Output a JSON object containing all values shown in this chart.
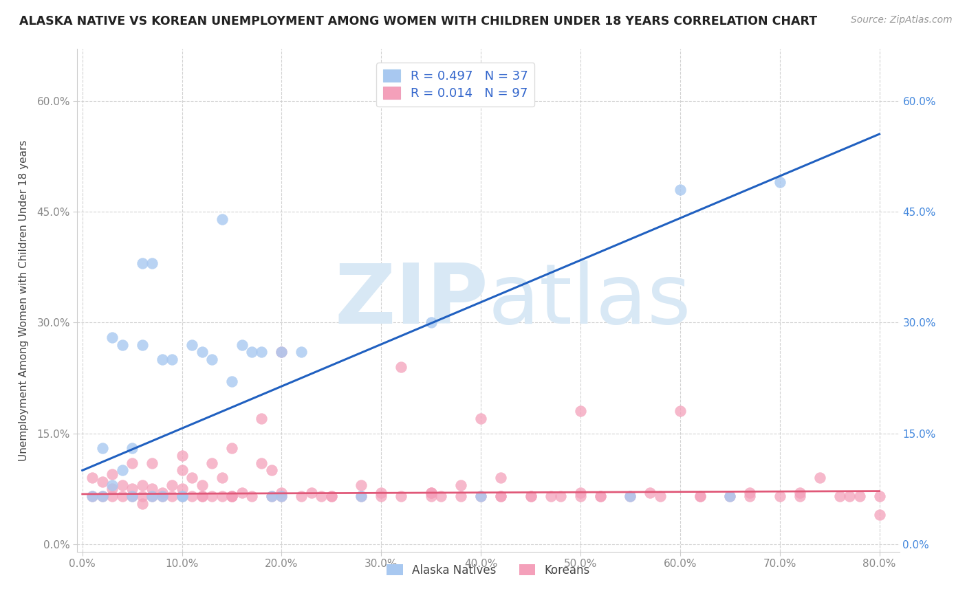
{
  "title": "ALASKA NATIVE VS KOREAN UNEMPLOYMENT AMONG WOMEN WITH CHILDREN UNDER 18 YEARS CORRELATION CHART",
  "source": "Source: ZipAtlas.com",
  "ylabel": "Unemployment Among Women with Children Under 18 years",
  "watermark_zip": "ZIP",
  "watermark_atlas": "atlas",
  "xlim": [
    -0.005,
    0.82
  ],
  "ylim": [
    -0.01,
    0.67
  ],
  "xticks": [
    0.0,
    0.1,
    0.2,
    0.3,
    0.4,
    0.5,
    0.6,
    0.7,
    0.8
  ],
  "xticklabels": [
    "0.0%",
    "10.0%",
    "20.0%",
    "30.0%",
    "40.0%",
    "50.0%",
    "60.0%",
    "70.0%",
    "80.0%"
  ],
  "yticks": [
    0.0,
    0.15,
    0.3,
    0.45,
    0.6
  ],
  "yticklabels_left": [
    "0.0%",
    "15.0%",
    "30.0%",
    "45.0%",
    "60.0%"
  ],
  "yticklabels_right": [
    "0.0%",
    "15.0%",
    "30.0%",
    "45.0%",
    "60.0%"
  ],
  "alaska_color": "#A8C8F0",
  "korean_color": "#F4A0BA",
  "alaska_line_color": "#2060C0",
  "korean_line_color": "#E05878",
  "R_alaska": 0.497,
  "N_alaska": 37,
  "R_korean": 0.014,
  "N_korean": 97,
  "legend_label_alaska": "Alaska Natives",
  "legend_label_korean": "Koreans",
  "alaska_line_x0": 0.0,
  "alaska_line_y0": 0.1,
  "alaska_line_x1": 0.8,
  "alaska_line_y1": 0.555,
  "korean_line_x0": 0.0,
  "korean_line_y0": 0.068,
  "korean_line_x1": 0.8,
  "korean_line_y1": 0.072,
  "alaska_scatter_x": [
    0.01,
    0.02,
    0.02,
    0.03,
    0.03,
    0.04,
    0.04,
    0.05,
    0.05,
    0.06,
    0.06,
    0.07,
    0.07,
    0.08,
    0.08,
    0.09,
    0.1,
    0.1,
    0.11,
    0.12,
    0.13,
    0.14,
    0.15,
    0.16,
    0.17,
    0.18,
    0.19,
    0.2,
    0.2,
    0.22,
    0.28,
    0.35,
    0.4,
    0.55,
    0.6,
    0.65,
    0.7
  ],
  "alaska_scatter_y": [
    0.065,
    0.13,
    0.065,
    0.08,
    0.28,
    0.1,
    0.27,
    0.13,
    0.065,
    0.27,
    0.38,
    0.38,
    0.065,
    0.25,
    0.065,
    0.25,
    0.065,
    0.065,
    0.27,
    0.26,
    0.25,
    0.44,
    0.22,
    0.27,
    0.26,
    0.26,
    0.065,
    0.065,
    0.26,
    0.26,
    0.065,
    0.3,
    0.065,
    0.065,
    0.48,
    0.065,
    0.49
  ],
  "korean_scatter_x": [
    0.01,
    0.01,
    0.02,
    0.02,
    0.03,
    0.03,
    0.03,
    0.04,
    0.04,
    0.05,
    0.05,
    0.05,
    0.06,
    0.06,
    0.06,
    0.07,
    0.07,
    0.07,
    0.08,
    0.08,
    0.09,
    0.09,
    0.1,
    0.1,
    0.1,
    0.11,
    0.11,
    0.12,
    0.12,
    0.13,
    0.13,
    0.14,
    0.14,
    0.15,
    0.15,
    0.15,
    0.16,
    0.17,
    0.18,
    0.19,
    0.19,
    0.2,
    0.2,
    0.22,
    0.23,
    0.24,
    0.25,
    0.28,
    0.3,
    0.32,
    0.35,
    0.36,
    0.38,
    0.4,
    0.42,
    0.42,
    0.45,
    0.48,
    0.5,
    0.5,
    0.52,
    0.55,
    0.58,
    0.6,
    0.62,
    0.65,
    0.67,
    0.7,
    0.72,
    0.74,
    0.76,
    0.78,
    0.8,
    0.3,
    0.35,
    0.4,
    0.45,
    0.5,
    0.1,
    0.12,
    0.15,
    0.18,
    0.2,
    0.25,
    0.28,
    0.32,
    0.38,
    0.42,
    0.47,
    0.52,
    0.57,
    0.62,
    0.67,
    0.72,
    0.77,
    0.8,
    0.35
  ],
  "korean_scatter_y": [
    0.065,
    0.09,
    0.065,
    0.085,
    0.065,
    0.075,
    0.095,
    0.065,
    0.08,
    0.065,
    0.075,
    0.11,
    0.065,
    0.055,
    0.08,
    0.065,
    0.075,
    0.11,
    0.065,
    0.07,
    0.065,
    0.08,
    0.065,
    0.075,
    0.1,
    0.065,
    0.09,
    0.065,
    0.08,
    0.065,
    0.11,
    0.065,
    0.09,
    0.065,
    0.13,
    0.065,
    0.07,
    0.065,
    0.11,
    0.065,
    0.1,
    0.26,
    0.07,
    0.065,
    0.07,
    0.065,
    0.065,
    0.065,
    0.065,
    0.24,
    0.065,
    0.065,
    0.08,
    0.065,
    0.065,
    0.065,
    0.065,
    0.065,
    0.18,
    0.065,
    0.065,
    0.065,
    0.065,
    0.18,
    0.065,
    0.065,
    0.07,
    0.065,
    0.065,
    0.09,
    0.065,
    0.065,
    0.04,
    0.07,
    0.07,
    0.17,
    0.065,
    0.07,
    0.12,
    0.065,
    0.065,
    0.17,
    0.065,
    0.065,
    0.08,
    0.065,
    0.065,
    0.09,
    0.065,
    0.065,
    0.07,
    0.065,
    0.065,
    0.07,
    0.065,
    0.065,
    0.07
  ]
}
